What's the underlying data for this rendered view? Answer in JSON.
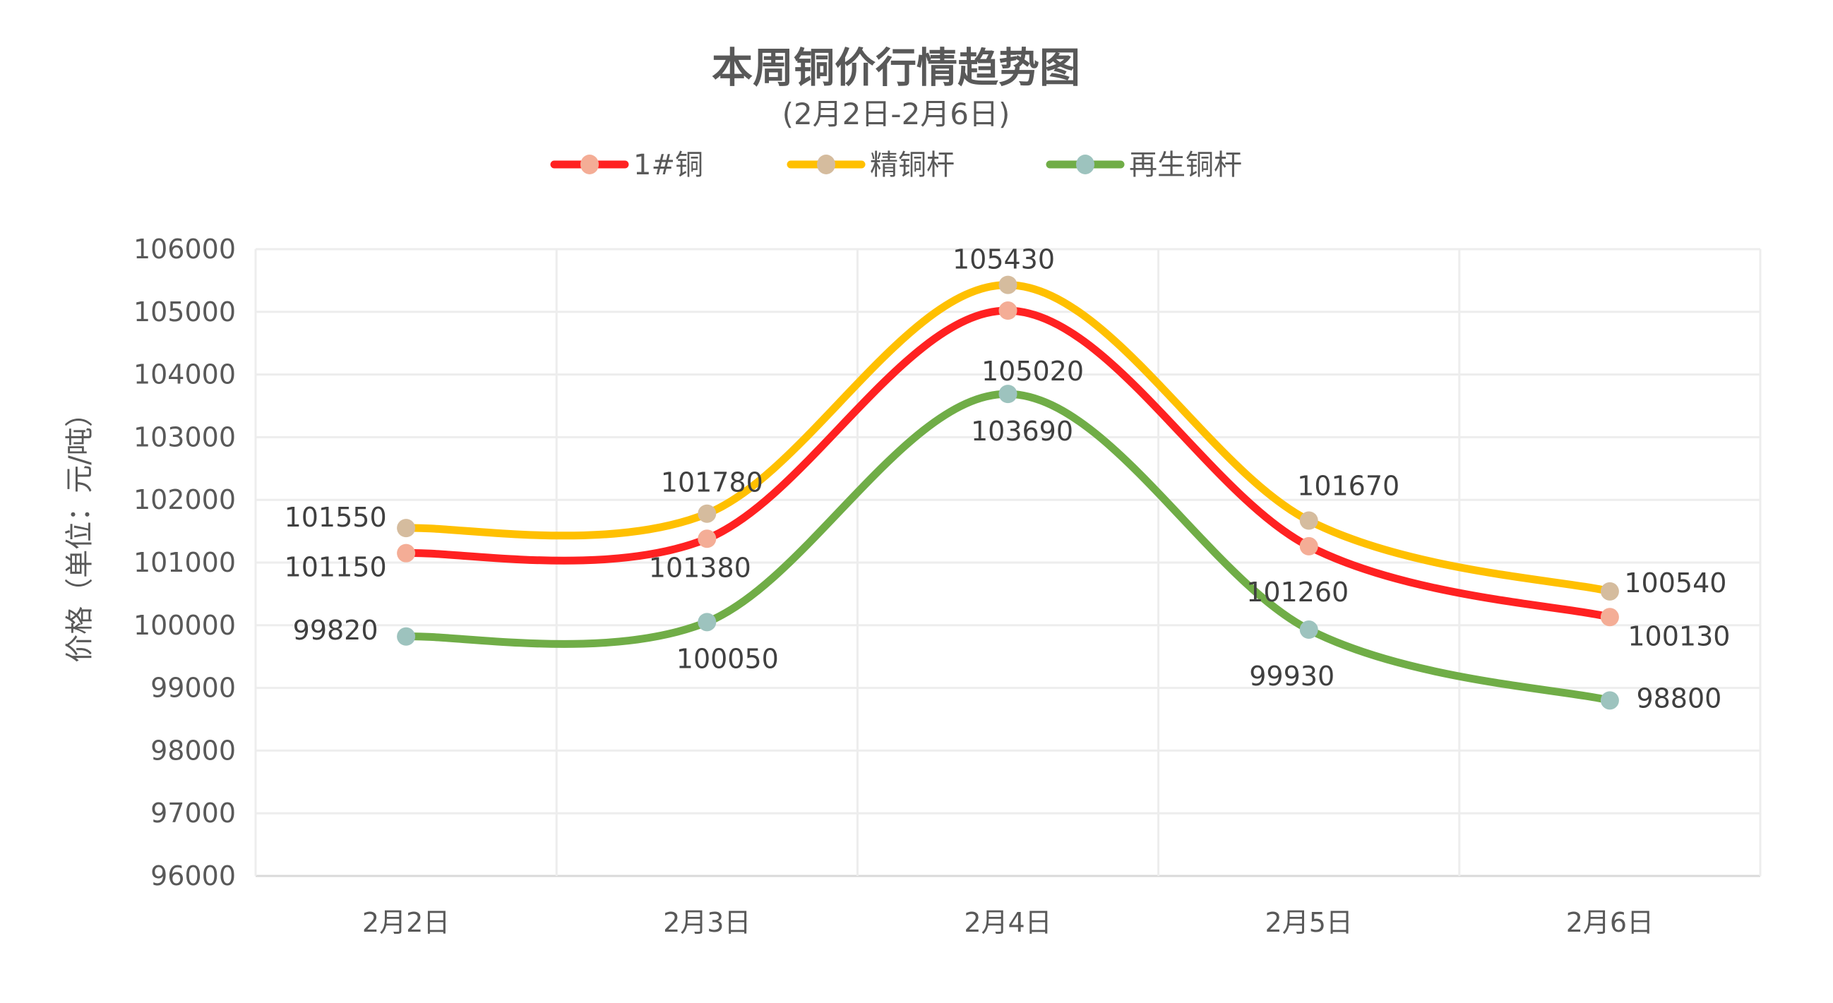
{
  "chart_data": {
    "type": "line",
    "title": "本周铜价行情趋势图",
    "subtitle": "(2月2日-2月6日)",
    "xlabel": "",
    "ylabel": "价格（单位：元/吨）",
    "categories": [
      "2月2日",
      "2月3日",
      "2月4日",
      "2月5日",
      "2月6日"
    ],
    "ylim": [
      96000,
      106000
    ],
    "yticks": [
      96000,
      97000,
      98000,
      99000,
      100000,
      101000,
      102000,
      103000,
      104000,
      105000,
      106000
    ],
    "grid": true,
    "smooth": true,
    "legend_position": "top",
    "series": [
      {
        "name": "1#铜",
        "values": [
          101150,
          101380,
          105020,
          101260,
          100130
        ],
        "line_color": "#FF2121",
        "marker_color": "#F4AD96",
        "label_offsets": [
          [
            -100,
            19
          ],
          [
            -10,
            40
          ],
          [
            35,
            85
          ],
          [
            -16,
            64
          ],
          [
            98,
            26
          ]
        ]
      },
      {
        "name": "精铜杆",
        "values": [
          101550,
          101780,
          105430,
          101670,
          100540
        ],
        "line_color": "#FFC000",
        "marker_color": "#D5BC9E",
        "label_offsets": [
          [
            -100,
            -16
          ],
          [
            7,
            -45
          ],
          [
            -6,
            -37
          ],
          [
            56,
            -50
          ],
          [
            93,
            -13
          ]
        ]
      },
      {
        "name": "再生铜杆",
        "values": [
          99820,
          100050,
          103690,
          99930,
          98800
        ],
        "line_color": "#70AD47",
        "marker_color": "#9DC3BE",
        "label_offsets": [
          [
            -100,
            -10
          ],
          [
            29,
            51
          ],
          [
            20,
            52
          ],
          [
            -24,
            65
          ],
          [
            98,
            -4
          ]
        ]
      }
    ]
  }
}
